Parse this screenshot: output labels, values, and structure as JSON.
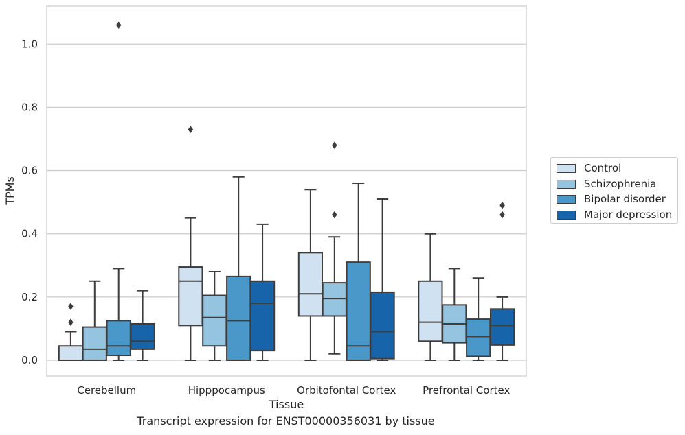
{
  "chart_data": {
    "type": "box",
    "caption": "Transcript expression for ENST00000356031 by tissue",
    "xlabel": "Tissue",
    "ylabel": "TPMs",
    "ylim": [
      -0.05,
      1.12
    ],
    "yticks": [
      "0.0",
      "0.2",
      "0.4",
      "0.6",
      "0.8",
      "1.0"
    ],
    "grid": "horizontal",
    "legend_position": "right",
    "categories": [
      "Cerebellum",
      "Hipppocampus",
      "Orbitofontal Cortex",
      "Prefrontal Cortex"
    ],
    "series": [
      {
        "name": "Control",
        "color": "#d0e1f2",
        "boxes": [
          {
            "whislo": 0.0,
            "q1": 0.0,
            "med": 0.0,
            "q3": 0.045,
            "whishi": 0.09,
            "fliers": [
              0.12,
              0.17
            ]
          },
          {
            "whislo": 0.0,
            "q1": 0.11,
            "med": 0.25,
            "q3": 0.295,
            "whishi": 0.45,
            "fliers": [
              0.73
            ]
          },
          {
            "whislo": 0.0,
            "q1": 0.14,
            "med": 0.21,
            "q3": 0.34,
            "whishi": 0.54,
            "fliers": []
          },
          {
            "whislo": 0.0,
            "q1": 0.06,
            "med": 0.12,
            "q3": 0.25,
            "whishi": 0.4,
            "fliers": []
          }
        ]
      },
      {
        "name": "Schizophrenia",
        "color": "#94c4df",
        "boxes": [
          {
            "whislo": 0.0,
            "q1": 0.0,
            "med": 0.035,
            "q3": 0.105,
            "whishi": 0.25,
            "fliers": []
          },
          {
            "whislo": 0.0,
            "q1": 0.045,
            "med": 0.135,
            "q3": 0.205,
            "whishi": 0.28,
            "fliers": []
          },
          {
            "whislo": 0.02,
            "q1": 0.14,
            "med": 0.195,
            "q3": 0.245,
            "whishi": 0.39,
            "fliers": [
              0.46,
              0.68
            ]
          },
          {
            "whislo": 0.0,
            "q1": 0.055,
            "med": 0.115,
            "q3": 0.175,
            "whishi": 0.29,
            "fliers": []
          }
        ]
      },
      {
        "name": "Bipolar disorder",
        "color": "#4a98c9",
        "boxes": [
          {
            "whislo": 0.0,
            "q1": 0.015,
            "med": 0.045,
            "q3": 0.125,
            "whishi": 0.29,
            "fliers": [
              1.06
            ]
          },
          {
            "whislo": 0.0,
            "q1": 0.0,
            "med": 0.125,
            "q3": 0.265,
            "whishi": 0.58,
            "fliers": []
          },
          {
            "whislo": 0.0,
            "q1": 0.0,
            "med": 0.045,
            "q3": 0.31,
            "whishi": 0.56,
            "fliers": []
          },
          {
            "whislo": 0.0,
            "q1": 0.012,
            "med": 0.075,
            "q3": 0.13,
            "whishi": 0.26,
            "fliers": []
          }
        ]
      },
      {
        "name": "Major depression",
        "color": "#1764ab",
        "boxes": [
          {
            "whislo": 0.0,
            "q1": 0.035,
            "med": 0.06,
            "q3": 0.115,
            "whishi": 0.22,
            "fliers": []
          },
          {
            "whislo": 0.0,
            "q1": 0.03,
            "med": 0.18,
            "q3": 0.25,
            "whishi": 0.43,
            "fliers": []
          },
          {
            "whislo": 0.0,
            "q1": 0.005,
            "med": 0.09,
            "q3": 0.215,
            "whishi": 0.51,
            "fliers": []
          },
          {
            "whislo": 0.0,
            "q1": 0.048,
            "med": 0.11,
            "q3": 0.162,
            "whishi": 0.2,
            "fliers": [
              0.46,
              0.49
            ]
          }
        ]
      }
    ]
  }
}
